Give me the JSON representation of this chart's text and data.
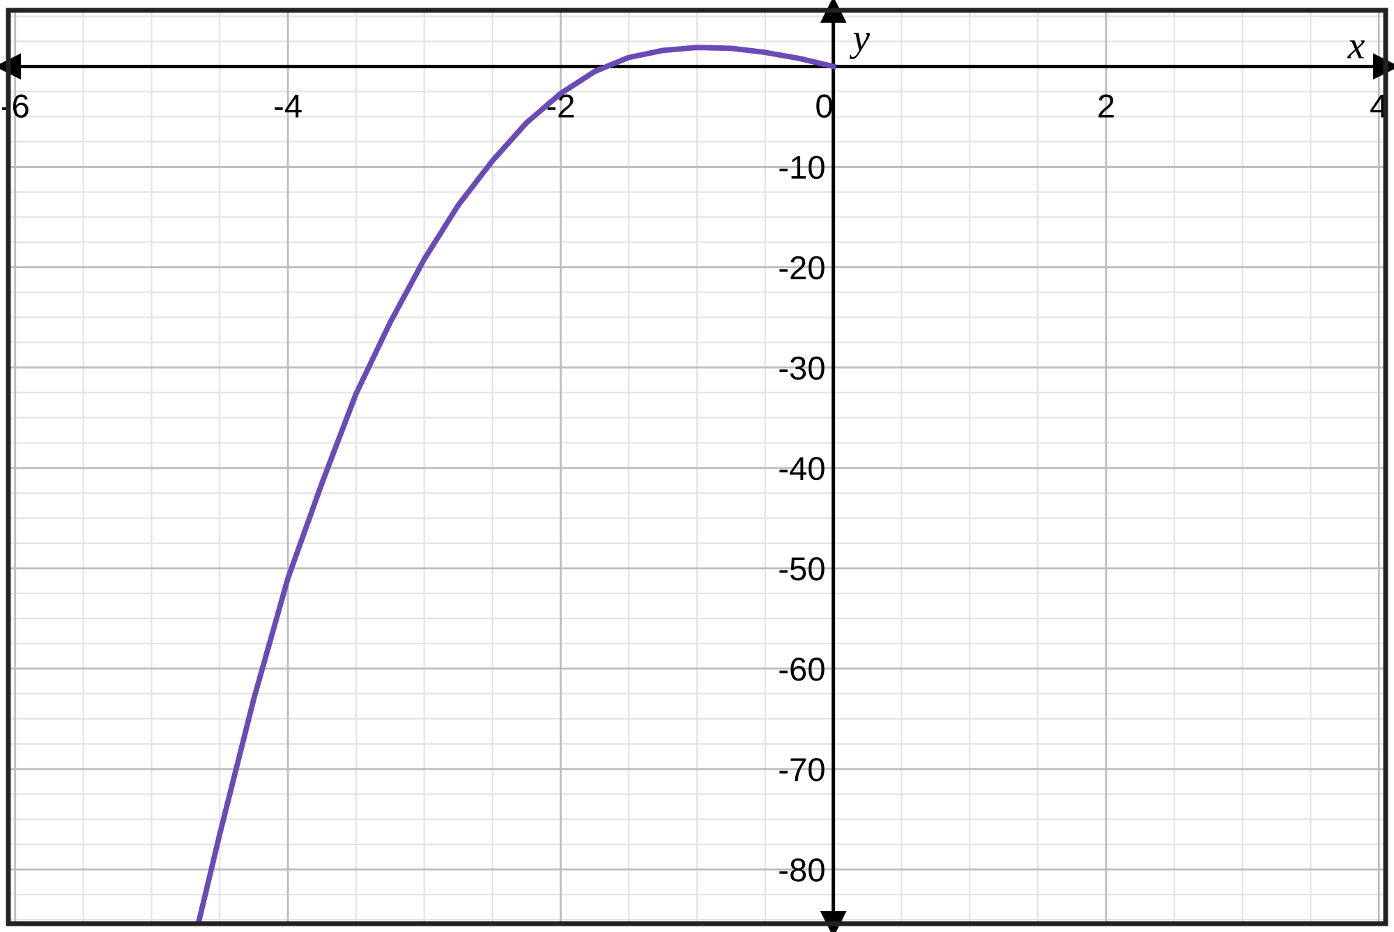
{
  "chart_data": {
    "type": "line",
    "xlabel": "x",
    "ylabel": "y",
    "x": [
      -4.65,
      -4.5,
      -4.25,
      -4,
      -3.75,
      -3.5,
      -3.25,
      -3,
      -2.75,
      -2.5,
      -2.25,
      -2,
      -1.75,
      -1.5,
      -1.25,
      -1,
      -0.75,
      -0.5,
      -0.25,
      0
    ],
    "series": [
      {
        "color": "#6a4bb5",
        "values": [
          -85,
          -76.5,
          -63,
          -51,
          -41.5,
          -32.6,
          -25.5,
          -19.2,
          -13.8,
          -9.4,
          -5.6,
          -2.7,
          -0.5,
          0.9,
          1.6,
          1.9,
          1.8,
          1.4,
          0.8,
          0
        ]
      }
    ],
    "xlim": [
      -6.05,
      4.05
    ],
    "ylim": [
      -85.4,
      5.6
    ],
    "xticks": [
      -6,
      -4,
      -2,
      0,
      2,
      4
    ],
    "yticks": [
      -10,
      -20,
      -30,
      -40,
      -50,
      -60,
      -70,
      -80
    ],
    "grid": true,
    "marker": "none",
    "line_style": "solid",
    "legend": false
  }
}
